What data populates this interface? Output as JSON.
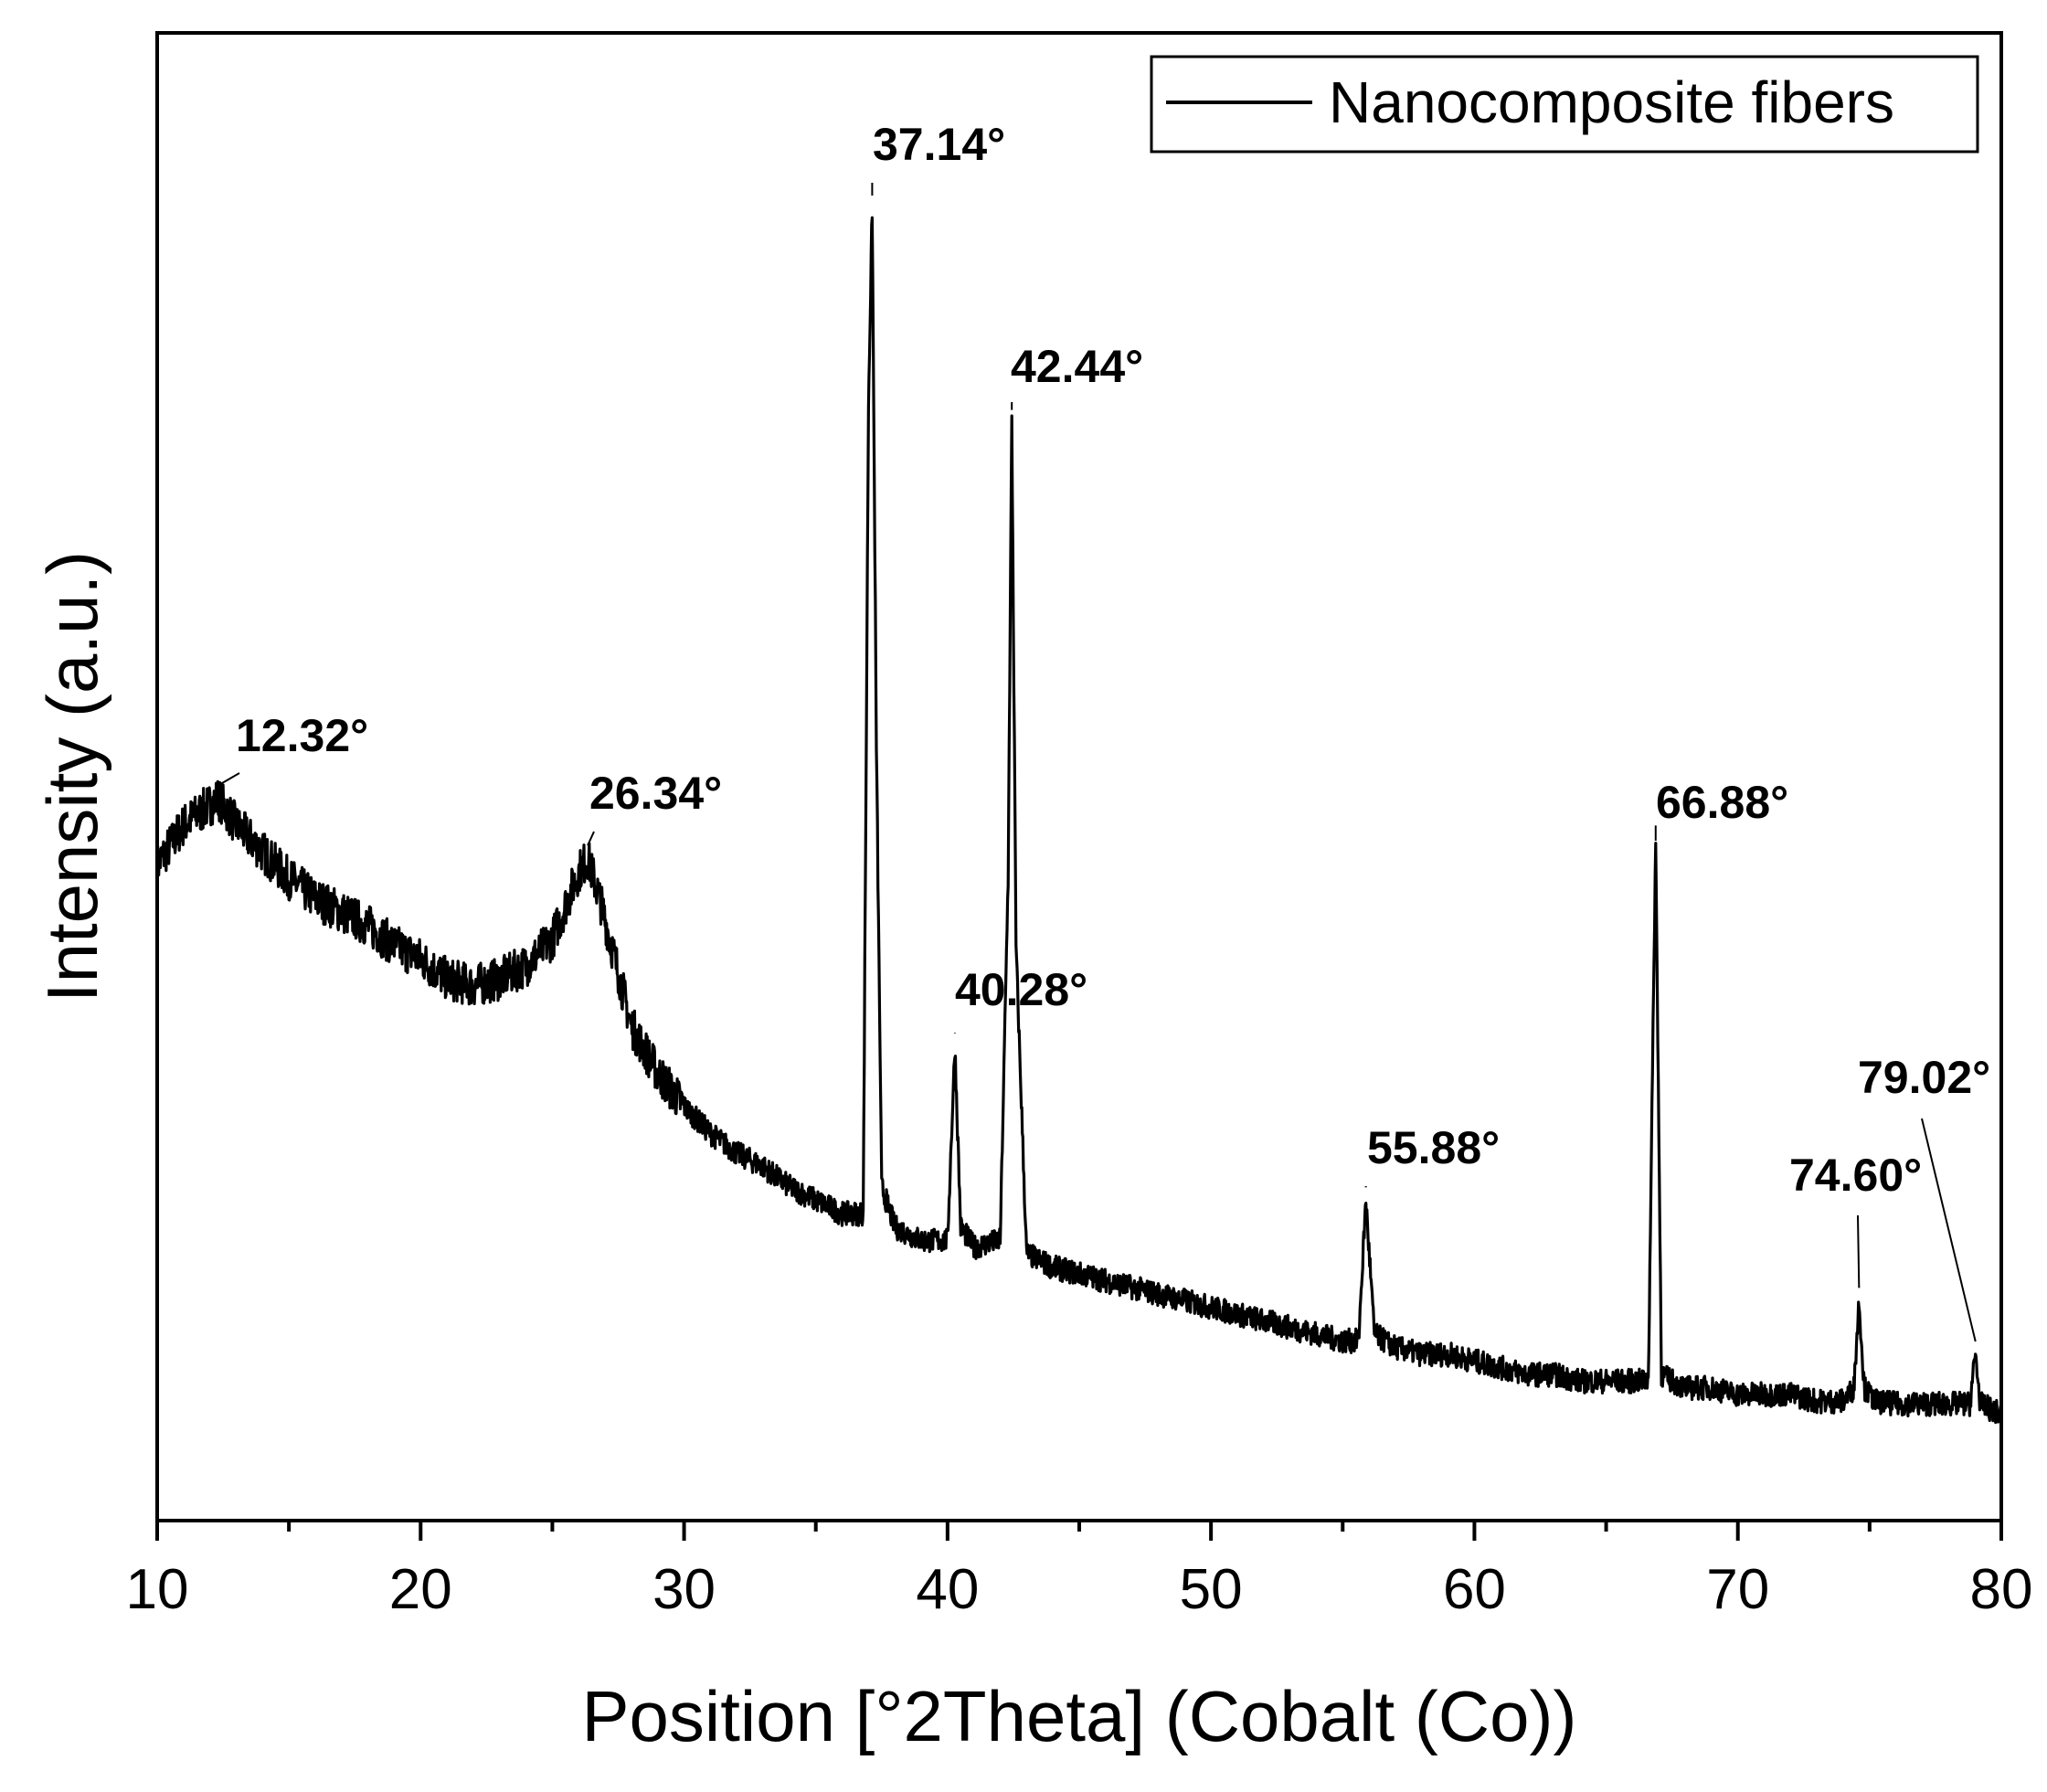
{
  "chart_data": {
    "type": "line",
    "title": "",
    "xlabel": "Position [°2Theta] (Cobalt (Co))",
    "ylabel": "Intensity (a.u.)",
    "xlim": [
      10,
      80
    ],
    "ylim": [
      0,
      100
    ],
    "xticks": [
      "10",
      "20",
      "30",
      "40",
      "50",
      "60",
      "70",
      "80"
    ],
    "yticks_shown": false,
    "legend": {
      "position": "top-right",
      "entries": [
        "Nanocomposite fibers"
      ]
    },
    "series": [
      {
        "name": "Nanocomposite fibers",
        "color": "#000000",
        "x": [
          10,
          11,
          12,
          12.32,
          13,
          14,
          15,
          16,
          17,
          18,
          19,
          20,
          21,
          22,
          23,
          24,
          25,
          25.5,
          26,
          26.34,
          26.8,
          27.5,
          28,
          29,
          30,
          31,
          32,
          33,
          34,
          35,
          36,
          36.8,
          37.0,
          37.14,
          37.3,
          37.5,
          38,
          39,
          40.0,
          40.28,
          40.5,
          41,
          42.0,
          42.3,
          42.44,
          42.6,
          43,
          44,
          45,
          46,
          47,
          48,
          49,
          50,
          51,
          52,
          53,
          54,
          55,
          55.6,
          55.88,
          56.2,
          57,
          58,
          59,
          60,
          61,
          62,
          63,
          64,
          65,
          66,
          66.6,
          66.88,
          67.1,
          67.5,
          68,
          69,
          70,
          71,
          72,
          73,
          74,
          74.4,
          74.6,
          74.8,
          75.2,
          76,
          77,
          78,
          78.8,
          79.02,
          79.2,
          80
        ],
        "intensity": [
          41,
          44,
          45.5,
          46,
          44,
          42,
          40,
          38.5,
          37.5,
          36.5,
          35,
          34,
          32.5,
          32,
          32.5,
          33.5,
          35.5,
          38,
          40.5,
          41.5,
          38.5,
          33,
          29,
          25.5,
          23,
          21,
          19.5,
          18.5,
          17,
          16,
          15,
          15,
          75.5,
          90,
          50,
          17,
          14,
          13,
          13,
          27.5,
          14,
          12.5,
          13,
          40,
          74,
          35,
          12,
          11,
          10.5,
          10,
          9.5,
          9,
          8.5,
          8,
          7.5,
          7,
          6.5,
          6,
          5.5,
          5.5,
          16,
          6,
          5,
          4.5,
          4.5,
          4,
          3.5,
          3,
          3,
          2.5,
          2.5,
          2.5,
          2.5,
          43,
          3,
          2.5,
          2,
          2,
          1.5,
          1.5,
          1.5,
          1,
          1,
          2,
          8.5,
          2,
          1,
          0.8,
          0.8,
          0.8,
          0.8,
          4.5,
          0.8,
          0
        ]
      }
    ],
    "annotations": [
      {
        "label": "12.32°",
        "x": 12.32,
        "intensity": 46
      },
      {
        "label": "26.34°",
        "x": 26.34,
        "intensity": 41.5
      },
      {
        "label": "37.14°",
        "x": 37.14,
        "intensity": 90
      },
      {
        "label": "40.28°",
        "x": 40.28,
        "intensity": 27.5
      },
      {
        "label": "42.44°",
        "x": 42.44,
        "intensity": 74
      },
      {
        "label": "55.88°",
        "x": 55.88,
        "intensity": 16
      },
      {
        "label": "66.88°",
        "x": 66.88,
        "intensity": 43
      },
      {
        "label": "74.60°",
        "x": 74.6,
        "intensity": 8.5
      },
      {
        "label": "79.02°",
        "x": 79.02,
        "intensity": 4.5
      }
    ]
  }
}
